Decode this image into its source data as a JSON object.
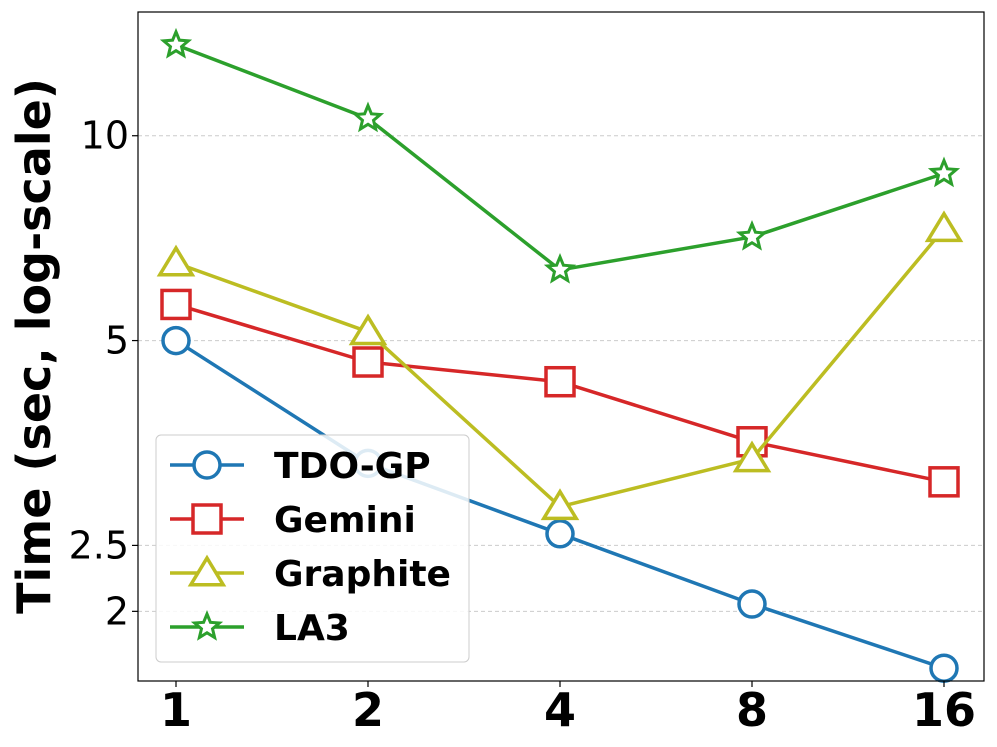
{
  "chart_data": {
    "type": "line",
    "title": "",
    "xlabel": "",
    "ylabel": "Time (sec, log-scale)",
    "yscale": "log",
    "ylim": [
      1.58,
      15.2
    ],
    "grid": "y-dashed",
    "legend_position": "lower-left",
    "categories": [
      "1",
      "2",
      "4",
      "8",
      "16"
    ],
    "yticks": [
      {
        "value": 2,
        "label": "2"
      },
      {
        "value": 2.5,
        "label": "2.5"
      },
      {
        "value": 5,
        "label": "5"
      },
      {
        "value": 10,
        "label": "10"
      }
    ],
    "series": [
      {
        "name": "TDO-GP",
        "marker": "circle",
        "color": "#1f77b4",
        "values": [
          5.0,
          3.3,
          2.6,
          2.05,
          1.65
        ]
      },
      {
        "name": "Gemini",
        "marker": "square",
        "color": "#d62728",
        "values": [
          5.65,
          4.65,
          4.35,
          3.55,
          3.1
        ]
      },
      {
        "name": "Graphite",
        "marker": "triangle",
        "color": "#bcbd22",
        "values": [
          6.5,
          5.15,
          2.85,
          3.35,
          7.3
        ]
      },
      {
        "name": "LA3",
        "marker": "star",
        "color": "#2ca02c",
        "values": [
          13.6,
          10.6,
          6.35,
          7.1,
          8.8
        ]
      }
    ]
  }
}
